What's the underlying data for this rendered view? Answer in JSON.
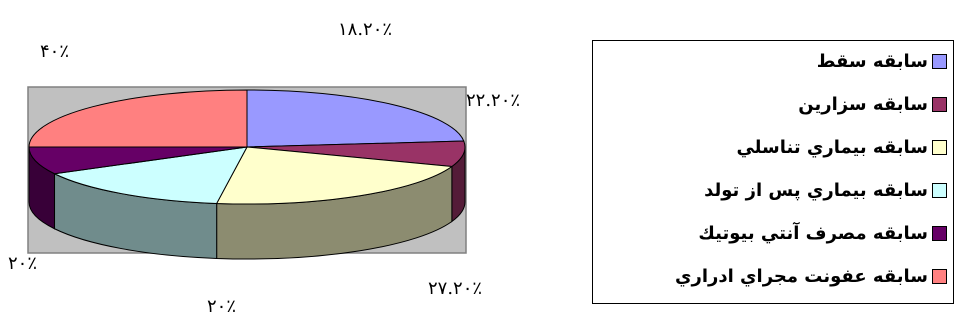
{
  "chart_data": {
    "type": "pie",
    "style": "3d",
    "series": [
      {
        "name": "سابقه سقط",
        "value_label": "۱۸.۲۰٪",
        "color": "#9999FF"
      },
      {
        "name": "سابقه سزارين",
        "value_label": "۲۲.۲۰٪",
        "color": "#993366"
      },
      {
        "name": "سابقه بيماري تناسلي",
        "value_label": "۲۷.۲۰٪",
        "color": "#FFFFCC"
      },
      {
        "name": "سابقه بيماري پس از تولد",
        "value_label": "۲۰٪",
        "color": "#CCFFFF"
      },
      {
        "name": "سابقه مصرف آنتي بيوتيك",
        "value_label": "۲۰٪",
        "color": "#660066"
      },
      {
        "name": "سابقه عفونت مجراي ادراري",
        "value_label": "۴۰٪",
        "color": "#FF8080"
      }
    ],
    "legend": "right",
    "plot_area_color": "#C0C0C0"
  }
}
